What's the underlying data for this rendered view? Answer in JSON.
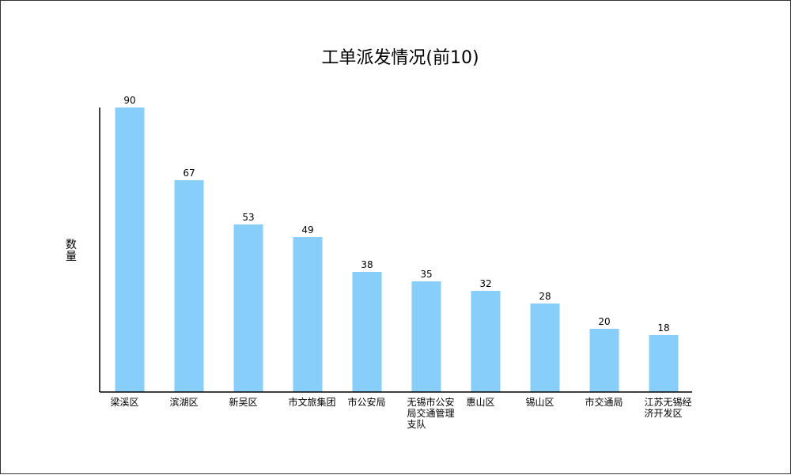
{
  "chart_data": {
    "type": "bar",
    "title": "工单派发情况(前10)",
    "ylabel": "数量",
    "xlabel": "",
    "categories": [
      "梁溪区",
      "滨湖区",
      "新吴区",
      "市文旅集团",
      "市公安局",
      "无锡市公安局交通管理支队",
      "惠山区",
      "锡山区",
      "市交通局",
      "江苏无锡经济开发区"
    ],
    "values": [
      90,
      67,
      53,
      49,
      38,
      35,
      32,
      28,
      20,
      18
    ],
    "ylim": [
      0,
      90
    ],
    "grid": false,
    "legend": "none",
    "colors": {
      "bar": "#87cefa",
      "axis": "#000000"
    }
  }
}
